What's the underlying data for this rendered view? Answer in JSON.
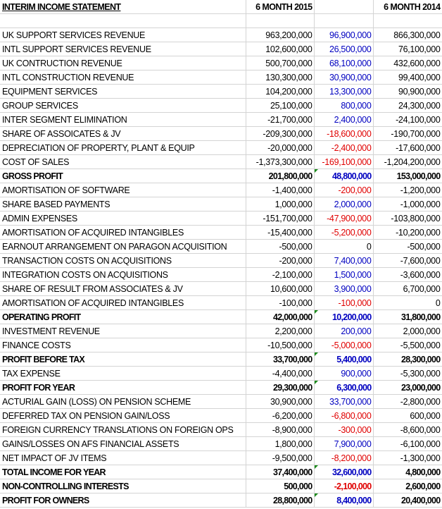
{
  "header": {
    "title": "INTERIM INCOME STATEMENT",
    "col2015": "6 MONTH 2015",
    "col2014": "6 MONTH 2014"
  },
  "rows": [
    {
      "label": "UK SUPPORT SERVICES REVENUE",
      "y2015": "963,200,000",
      "diff": "96,900,000",
      "y2014": "866,300,000"
    },
    {
      "label": "INTL SUPPORT SERVICES REVENUE",
      "y2015": "102,600,000",
      "diff": "26,500,000",
      "y2014": "76,100,000"
    },
    {
      "label": "UK CONTRUCTION REVENUE",
      "y2015": "500,700,000",
      "diff": "68,100,000",
      "y2014": "432,600,000"
    },
    {
      "label": "INTL CONSTRUCTION REVENUE",
      "y2015": "130,300,000",
      "diff": "30,900,000",
      "y2014": "99,400,000"
    },
    {
      "label": "EQUIPMENT SERVICES",
      "y2015": "104,200,000",
      "diff": "13,300,000",
      "y2014": "90,900,000"
    },
    {
      "label": "GROUP SERVICES",
      "y2015": "25,100,000",
      "diff": "800,000",
      "y2014": "24,300,000"
    },
    {
      "label": "INTER SEGMENT ELIMINATION",
      "y2015": "-21,700,000",
      "diff": "2,400,000",
      "y2014": "-24,100,000"
    },
    {
      "label": "SHARE OF ASSOICATES & JV",
      "y2015": "-209,300,000",
      "diff": "-18,600,000",
      "y2014": "-190,700,000"
    },
    {
      "label": "DEPRECIATION OF PROPERTY, PLANT & EQUIP",
      "y2015": "-20,000,000",
      "diff": "-2,400,000",
      "y2014": "-17,600,000"
    },
    {
      "label": "COST OF SALES",
      "y2015": "-1,373,300,000",
      "diff": "-169,100,000",
      "y2014": "-1,204,200,000"
    },
    {
      "label": "GROSS PROFIT",
      "y2015": "201,800,000",
      "diff": "48,800,000",
      "y2014": "153,000,000",
      "bold": true,
      "flag": true
    },
    {
      "label": "AMORTISATION OF SOFTWARE",
      "y2015": "-1,400,000",
      "diff": "-200,000",
      "y2014": "-1,200,000"
    },
    {
      "label": "SHARE BASED PAYMENTS",
      "y2015": "1,000,000",
      "diff": "2,000,000",
      "y2014": "-1,000,000"
    },
    {
      "label": "ADMIN EXPENSES",
      "y2015": "-151,700,000",
      "diff": "-47,900,000",
      "y2014": "-103,800,000"
    },
    {
      "label": "AMORTISATION OF ACQUIRED INTANGIBLES",
      "y2015": "-15,400,000",
      "diff": "-5,200,000",
      "y2014": "-10,200,000"
    },
    {
      "label": "EARNOUT ARRANGEMENT ON PARAGON ACQUISITION",
      "y2015": "-500,000",
      "diff": "0",
      "y2014": "-500,000"
    },
    {
      "label": "TRANSACTION COSTS ON ACQUISITIONS",
      "y2015": "-200,000",
      "diff": "7,400,000",
      "y2014": "-7,600,000"
    },
    {
      "label": "INTEGRATION COSTS ON ACQUISITIONS",
      "y2015": "-2,100,000",
      "diff": "1,500,000",
      "y2014": "-3,600,000"
    },
    {
      "label": "SHARE OF RESULT FROM ASSOCIATES & JV",
      "y2015": "10,600,000",
      "diff": "3,900,000",
      "y2014": "6,700,000"
    },
    {
      "label": "AMORTISATION OF ACQUIRED INTANGIBLES",
      "y2015": "-100,000",
      "diff": "-100,000",
      "y2014": "0"
    },
    {
      "label": "OPERATING PROFIT",
      "y2015": "42,000,000",
      "diff": "10,200,000",
      "y2014": "31,800,000",
      "bold": true,
      "flag": true
    },
    {
      "label": "INVESTMENT REVENUE",
      "y2015": "2,200,000",
      "diff": "200,000",
      "y2014": "2,000,000"
    },
    {
      "label": "FINANCE COSTS",
      "y2015": "-10,500,000",
      "diff": "-5,000,000",
      "y2014": "-5,500,000"
    },
    {
      "label": "PROFIT BEFORE TAX",
      "y2015": "33,700,000",
      "diff": "5,400,000",
      "y2014": "28,300,000",
      "bold": true,
      "flag": true
    },
    {
      "label": "TAX EXPENSE",
      "y2015": "-4,400,000",
      "diff": "900,000",
      "y2014": "-5,300,000"
    },
    {
      "label": "PROFIT FOR YEAR",
      "y2015": "29,300,000",
      "diff": "6,300,000",
      "y2014": "23,000,000",
      "bold": true,
      "flag": true
    },
    {
      "label": "ACTURIAL GAIN (LOSS) ON PENSION SCHEME",
      "y2015": "30,900,000",
      "diff": "33,700,000",
      "y2014": "-2,800,000"
    },
    {
      "label": "DEFERRED TAX ON PENSION GAIN/LOSS",
      "y2015": "-6,200,000",
      "diff": "-6,800,000",
      "y2014": "600,000"
    },
    {
      "label": "FOREIGN CURRENCY TRANSLATIONS ON FOREIGN OPS",
      "y2015": "-8,900,000",
      "diff": "-300,000",
      "y2014": "-8,600,000"
    },
    {
      "label": "GAINS/LOSSES ON AFS FINANCIAL ASSETS",
      "y2015": "1,800,000",
      "diff": "7,900,000",
      "y2014": "-6,100,000"
    },
    {
      "label": "NET IMPACT OF JV ITEMS",
      "y2015": "-9,500,000",
      "diff": "-8,200,000",
      "y2014": "-1,300,000"
    },
    {
      "label": "TOTAL INCOME FOR YEAR",
      "y2015": "37,400,000",
      "diff": "32,600,000",
      "y2014": "4,800,000",
      "bold": true,
      "flag": true
    },
    {
      "label": "NON-CONTROLLING INTERESTS",
      "y2015": "500,000",
      "diff": "-2,100,000",
      "y2014": "2,600,000",
      "bold": true
    },
    {
      "label": "PROFIT FOR OWNERS",
      "y2015": "28,800,000",
      "diff": "8,400,000",
      "y2014": "20,400,000",
      "bold": true,
      "flag": true
    }
  ],
  "colors": {
    "positive": "#0000c0",
    "negative": "#e00000",
    "flag": "#1a8a1a"
  }
}
